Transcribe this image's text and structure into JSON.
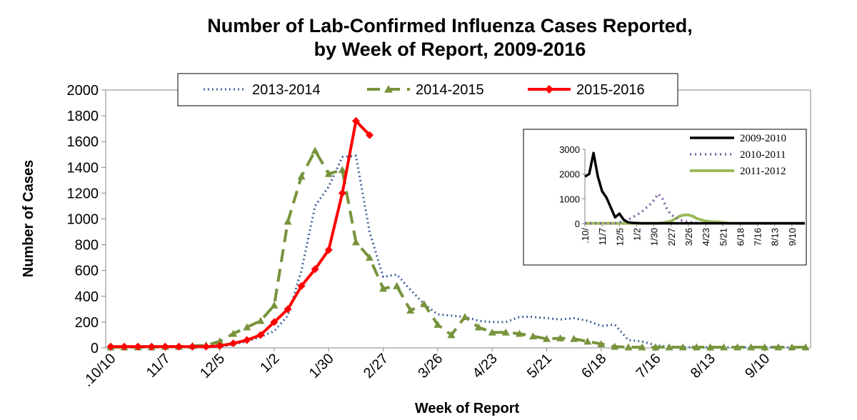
{
  "chart_data": [
    {
      "type": "line",
      "title": "Number of Lab-Confirmed Influenza Cases Reported,",
      "subtitle": "by Week of Report, 2009-2016",
      "xlabel": "Week of Report",
      "ylabel": "Number of Cases",
      "ylim": [
        0,
        2000
      ],
      "y_ticks": [
        "0",
        "200",
        "400",
        "600",
        "800",
        "1000",
        "1200",
        "1400",
        "1600",
        "1800",
        "2000"
      ],
      "x_tick_labels": [
        ".10/10",
        "11/7",
        "12/5",
        "1/2",
        "1/30",
        "2/27",
        "3/26",
        "4/23",
        "5/21",
        "6/18",
        "7/16",
        "8/13",
        "9/10"
      ],
      "x_tick_weeks": [
        0,
        4,
        8,
        12,
        16,
        20,
        24,
        28,
        32,
        36,
        40,
        44,
        48
      ],
      "num_weeks": 52,
      "legend": [
        "2013-2014",
        "2014-2015",
        "2015-2016"
      ],
      "legend_position": "top",
      "series": [
        {
          "name": "2013-2014",
          "color": "#2E5597",
          "style": "dotted",
          "values": [
            5,
            5,
            5,
            5,
            5,
            5,
            5,
            5,
            10,
            25,
            50,
            85,
            130,
            250,
            600,
            1100,
            1250,
            1480,
            1490,
            900,
            550,
            570,
            450,
            340,
            260,
            250,
            240,
            210,
            200,
            200,
            240,
            240,
            230,
            220,
            230,
            210,
            170,
            180,
            60,
            50,
            20,
            10,
            5,
            5,
            5,
            5,
            5,
            5,
            5,
            5,
            5,
            5
          ]
        },
        {
          "name": "2014-2015",
          "color": "#77933C",
          "style": "dashed",
          "marker": "triangle",
          "values": [
            5,
            5,
            5,
            5,
            10,
            10,
            15,
            20,
            50,
            110,
            160,
            210,
            330,
            980,
            1330,
            1530,
            1350,
            1380,
            820,
            700,
            460,
            480,
            290,
            340,
            180,
            100,
            240,
            160,
            120,
            120,
            110,
            90,
            70,
            75,
            70,
            50,
            30,
            10,
            5,
            5,
            5,
            5,
            5,
            5,
            5,
            5,
            5,
            5,
            5,
            5,
            5,
            5
          ]
        },
        {
          "name": "2015-2016",
          "color": "#FF0000",
          "style": "solid",
          "marker": "diamond",
          "values": [
            10,
            10,
            10,
            10,
            10,
            10,
            10,
            10,
            15,
            35,
            60,
            100,
            200,
            300,
            480,
            610,
            760,
            1200,
            1760,
            1650
          ]
        }
      ]
    },
    {
      "type": "line",
      "role": "inset",
      "ylim": [
        0,
        3000
      ],
      "y_ticks": [
        "0",
        "1000",
        "2000",
        "3000"
      ],
      "x_tick_labels": [
        ".10/",
        "11/7",
        "12/5",
        "1/2",
        "1/30",
        "2/27",
        "3/26",
        "4/23",
        "5/21",
        "6/18",
        "7/16",
        "8/13",
        "9/10"
      ],
      "x_tick_weeks": [
        0,
        4,
        8,
        12,
        16,
        20,
        24,
        28,
        32,
        36,
        40,
        44,
        48
      ],
      "num_weeks": 52,
      "legend": [
        "2009-2010",
        "2010-2011",
        "2011-2012"
      ],
      "legend_position": "top-right",
      "series": [
        {
          "name": "2009-2010",
          "color": "#000000",
          "style": "solid",
          "values": [
            1900,
            2000,
            2850,
            1900,
            1300,
            1050,
            650,
            250,
            400,
            150,
            50,
            30,
            20,
            10,
            10,
            10,
            10,
            10,
            10,
            10,
            10,
            10,
            10,
            10,
            10,
            10,
            10,
            10,
            10,
            10,
            10,
            10,
            10,
            10,
            10,
            10,
            10,
            10,
            10,
            10,
            10,
            10,
            10,
            10,
            10,
            10,
            10,
            10,
            10,
            10,
            10,
            10
          ]
        },
        {
          "name": "2010-2011",
          "color": "#8064A2",
          "style": "dotted",
          "values": [
            10,
            10,
            10,
            10,
            10,
            10,
            10,
            10,
            50,
            100,
            150,
            250,
            350,
            450,
            600,
            750,
            950,
            1200,
            1000,
            600,
            350,
            250,
            150,
            100,
            60,
            40,
            20,
            10,
            10,
            10,
            10,
            10,
            10,
            10,
            10,
            10,
            10,
            10,
            10,
            10,
            10,
            10,
            10,
            10,
            10,
            10,
            10,
            10,
            10,
            10,
            10,
            10
          ]
        },
        {
          "name": "2011-2012",
          "color": "#9BBB59",
          "style": "solid",
          "values": [
            10,
            10,
            10,
            10,
            10,
            10,
            10,
            10,
            10,
            10,
            10,
            10,
            10,
            10,
            10,
            10,
            10,
            10,
            20,
            60,
            100,
            200,
            300,
            350,
            350,
            300,
            200,
            150,
            100,
            80,
            70,
            60,
            40,
            20,
            10,
            10,
            10,
            10,
            10,
            10,
            10,
            10,
            10,
            10,
            10,
            10,
            10,
            10,
            10,
            10,
            10,
            10
          ]
        }
      ]
    }
  ]
}
